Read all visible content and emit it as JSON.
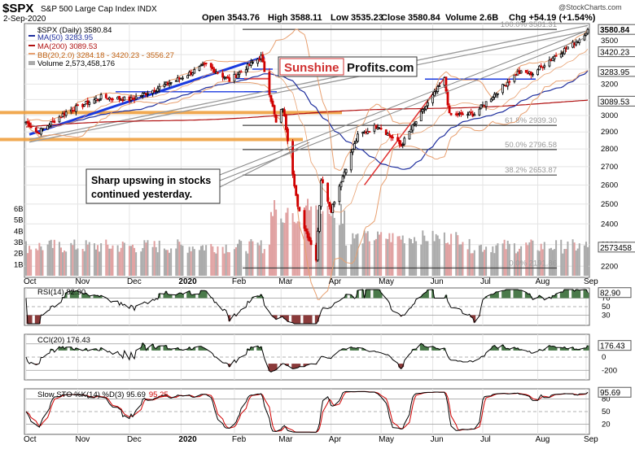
{
  "header": {
    "symbol": "$SPX",
    "name": "S&P 500 Large Cap Index",
    "exchange": "INDX",
    "date": "2-Sep-2020",
    "open": "Open 3543.76",
    "high": "High 3588.11",
    "low": "Low 3535.23",
    "close": "Close 3580.84",
    "volume": "Volume 2.6B",
    "chg": "Chg +54.19 (+1.54%)",
    "watermark": "@StockCharts.com"
  },
  "legend": {
    "price": "$SPX (Daily) 3580.84",
    "ma50": "MA(50) 3283.95",
    "ma200": "MA(200) 3089.53",
    "bb": "BB(20,2.0) 3284.18 - 3420.23 - 3556.27",
    "volume": "Volume 2,573,458,176"
  },
  "brand": {
    "part1": "Sunshine",
    "part2": "Profits.com"
  },
  "annotation": {
    "line1": "Sharp upswing in stocks",
    "line2": "continued yesterday."
  },
  "fib_levels": [
    {
      "label": "100.0% 3581.31",
      "value": 3581.31
    },
    {
      "label": "61.8% 2939.30",
      "value": 2939.3
    },
    {
      "label": "50.0% 2796.58",
      "value": 2796.58
    },
    {
      "label": "38.2% 2653.87",
      "value": 2653.87
    },
    {
      "label": "0.0% 2191.86",
      "value": 2191.86
    }
  ],
  "price_badges": [
    {
      "text": "3580.84",
      "value": 3580.84,
      "type": "last"
    },
    {
      "text": "3420.23",
      "value": 3420.23,
      "type": "bb"
    },
    {
      "text": "3283.95",
      "value": 3283.95,
      "type": "ma50"
    },
    {
      "text": "3089.53",
      "value": 3089.53,
      "type": "ma200"
    }
  ],
  "volume_badge": "2573458",
  "volume_ticks": [
    "6B",
    "5B",
    "4B",
    "3B",
    "2B",
    "1B"
  ],
  "price_ticks": [
    "3500",
    "3400",
    "3300",
    "3200",
    "3100",
    "3000",
    "2900",
    "2800",
    "2700",
    "2600",
    "2500",
    "2400",
    "2300",
    "2200"
  ],
  "months": [
    "Oct",
    "Nov",
    "Dec",
    "2020",
    "Feb",
    "Mar",
    "Apr",
    "May",
    "Jun",
    "Jul",
    "Aug",
    "Sep"
  ],
  "rsi": {
    "label": "RSI(14) 82.90",
    "badge": "82.90",
    "ticks": [
      "70",
      "50",
      "30"
    ]
  },
  "cci": {
    "label": "CCI(20) 176.43",
    "badge": "176.43",
    "ticks": [
      "200",
      "0",
      "-200"
    ]
  },
  "sto": {
    "label": "Slow STO %K(14) %D(3) 95.69",
    "label_red": "95.25",
    "badge": "95.69",
    "ticks": [
      "80",
      "50",
      "20"
    ]
  },
  "colors": {
    "ma50": "#1f2f9e",
    "ma200": "#b01010",
    "bb": "#e8a070",
    "trend_blue": "#1a3adf",
    "support_orange": "#f0a040",
    "resistance_red": "#e05050",
    "candle_up": "#000000",
    "candle_down": "#d00000",
    "volume_up": "#aaaaaa",
    "volume_down": "#e0a0a0",
    "indicator_fill": "#4a7a4a",
    "indicator_fill_low": "#8a3a3a"
  },
  "chart_data": {
    "type": "candlestick",
    "title": "$SPX S&P 500 Large Cap Index",
    "x_start": "2019-10-01",
    "x_end": "2020-09-02",
    "ylim": [
      2150,
      3600
    ],
    "y_scale": "log",
    "price_anchors": [
      [
        "2019-10-01",
        2960
      ],
      [
        "2019-10-08",
        2895
      ],
      [
        "2019-10-25",
        3020
      ],
      [
        "2019-11-15",
        3115
      ],
      [
        "2019-12-03",
        3100
      ],
      [
        "2019-12-31",
        3230
      ],
      [
        "2020-01-17",
        3330
      ],
      [
        "2020-01-31",
        3225
      ],
      [
        "2020-02-19",
        3386
      ],
      [
        "2020-02-28",
        2954
      ],
      [
        "2020-03-03",
        3050
      ],
      [
        "2020-03-12",
        2480
      ],
      [
        "2020-03-16",
        2386
      ],
      [
        "2020-03-23",
        2237
      ],
      [
        "2020-03-26",
        2630
      ],
      [
        "2020-04-01",
        2470
      ],
      [
        "2020-04-17",
        2875
      ],
      [
        "2020-04-29",
        2940
      ],
      [
        "2020-05-13",
        2820
      ],
      [
        "2020-06-08",
        3232
      ],
      [
        "2020-06-11",
        3002
      ],
      [
        "2020-06-26",
        3010
      ],
      [
        "2020-07-22",
        3276
      ],
      [
        "2020-07-31",
        3271
      ],
      [
        "2020-08-12",
        3380
      ],
      [
        "2020-08-28",
        3508
      ],
      [
        "2020-09-02",
        3580.84
      ]
    ],
    "series": [
      {
        "name": "MA(50)",
        "last": 3283.95
      },
      {
        "name": "MA(200)",
        "last": 3089.53
      },
      {
        "name": "BB(20,2.0)",
        "lower": 3284.18,
        "middle": 3420.23,
        "upper": 3556.27
      }
    ],
    "volume_last": 2573458176,
    "indicators": {
      "RSI(14)": 82.9,
      "CCI(20)": 176.43,
      "Slow STO %K": 95.69,
      "Slow STO %D": 95.25
    }
  }
}
